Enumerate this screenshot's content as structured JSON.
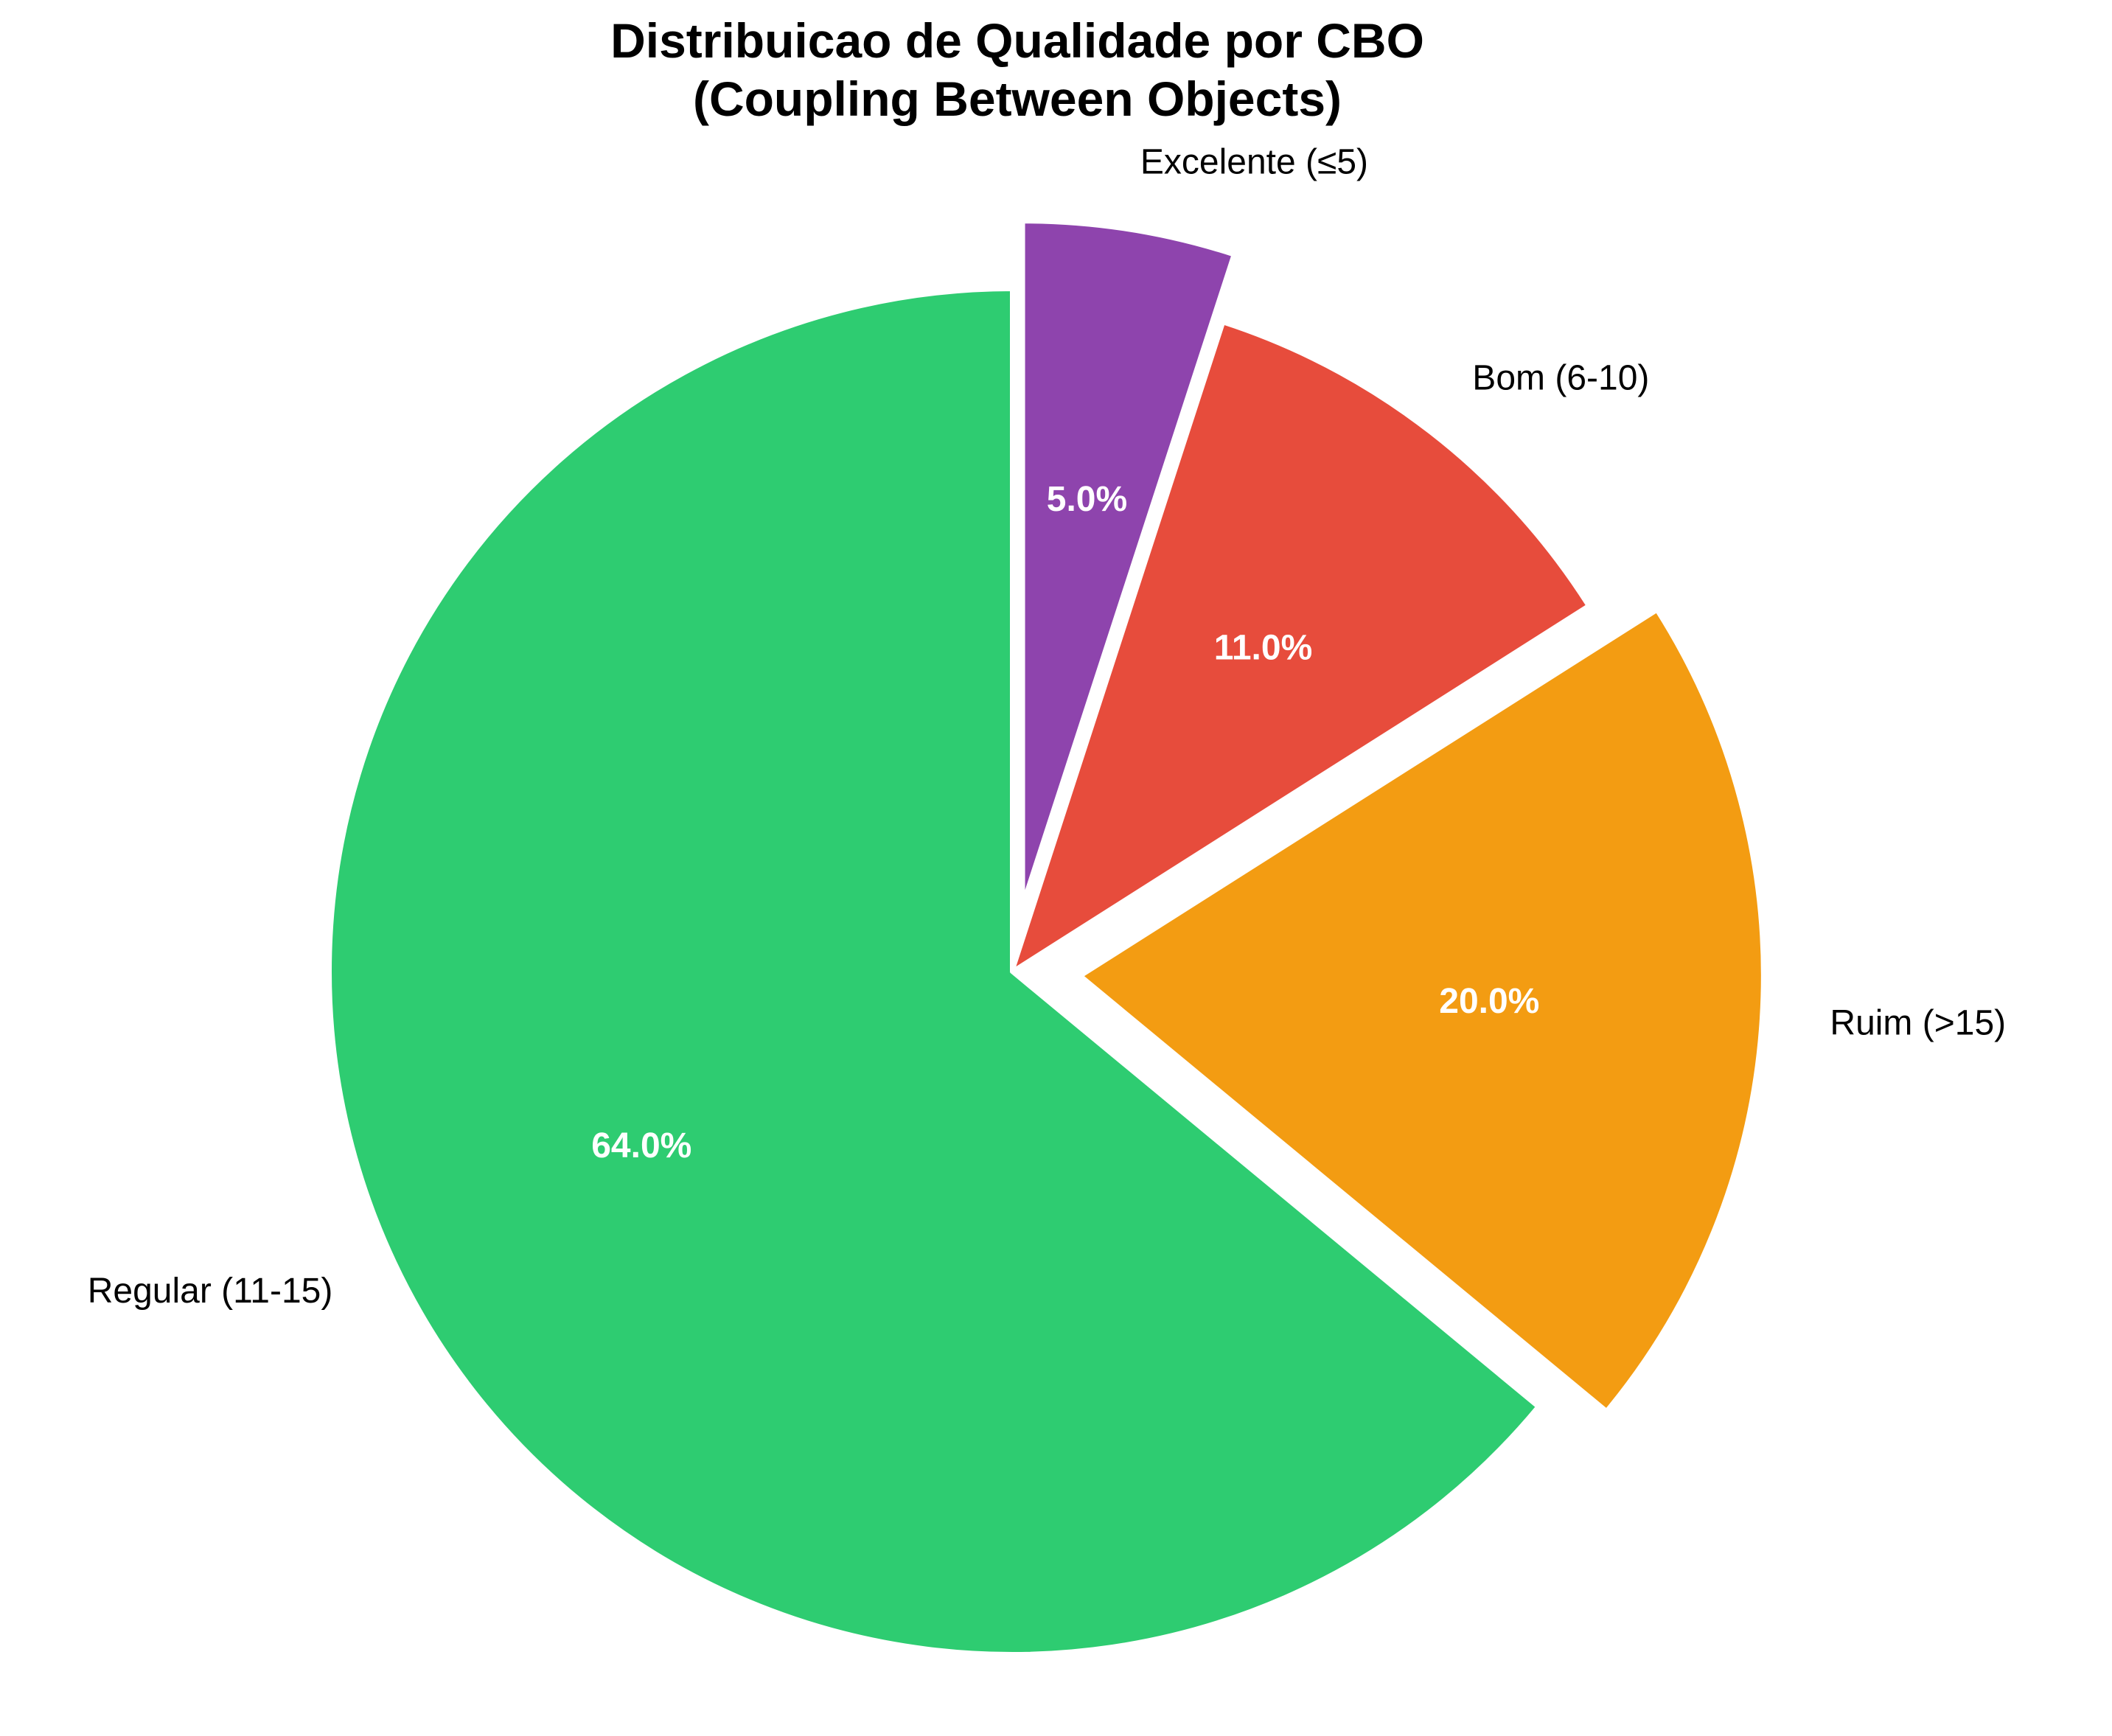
{
  "chart_data": {
    "type": "pie",
    "title_lines": [
      "Distribuicao de Qualidade por CBO",
      "(Coupling Between Objects)"
    ],
    "start": "top, clockwise",
    "slices": [
      {
        "label": "Excelente (≤5)",
        "value": 5.0,
        "pct_label": "5.0%",
        "color": "#8e44ad",
        "exploded": true
      },
      {
        "label": "Bom (6-10)",
        "value": 11.0,
        "pct_label": "11.0%",
        "color": "#e74c3c",
        "exploded": false
      },
      {
        "label": "Ruim (>15)",
        "value": 20.0,
        "pct_label": "20.0%",
        "color": "#f39c12",
        "exploded": true
      },
      {
        "label": "Regular (11-15)",
        "value": 64.0,
        "pct_label": "64.0%",
        "color": "#2ecc71",
        "exploded": false
      }
    ],
    "slice_edge_color": "#ffffff"
  }
}
